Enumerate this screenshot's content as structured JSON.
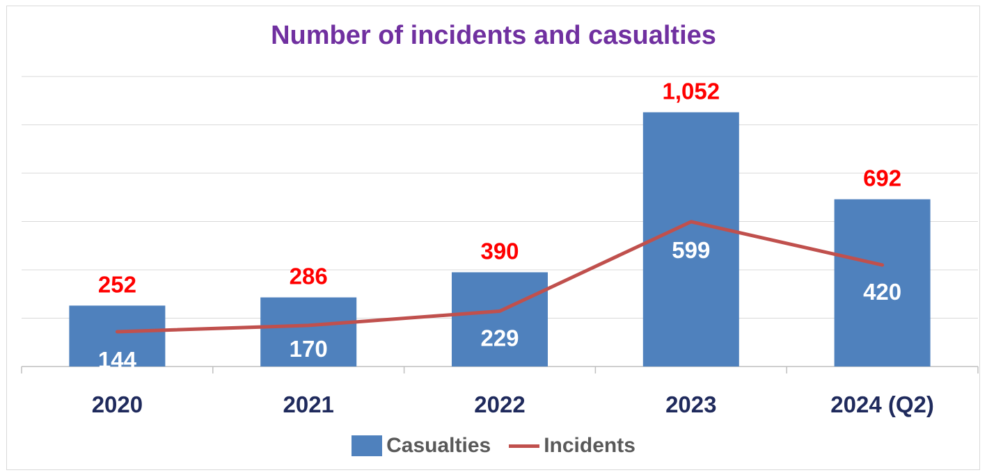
{
  "chart_data": {
    "type": "bar",
    "title": "Number of incidents and casualties",
    "categories": [
      "2020",
      "2021",
      "2022",
      "2023",
      "2024 (Q2)"
    ],
    "series": [
      {
        "name": "Casualties",
        "kind": "bar",
        "values": [
          252,
          286,
          390,
          1052,
          692
        ],
        "value_labels": [
          "252",
          "286",
          "390",
          "1,052",
          "692"
        ],
        "color": "#4f81bd",
        "label_color": "#ff0000"
      },
      {
        "name": "Incidents",
        "kind": "line",
        "values": [
          144,
          170,
          229,
          599,
          420
        ],
        "value_labels": [
          "144",
          "170",
          "229",
          "599",
          "420"
        ],
        "color": "#c0504d",
        "label_color": "#ffffff"
      }
    ],
    "ylim": [
      0,
      1200
    ],
    "grid": true,
    "legend_position": "bottom",
    "category_label_color": "#1f2a5c",
    "title_color": "#7030a0"
  }
}
